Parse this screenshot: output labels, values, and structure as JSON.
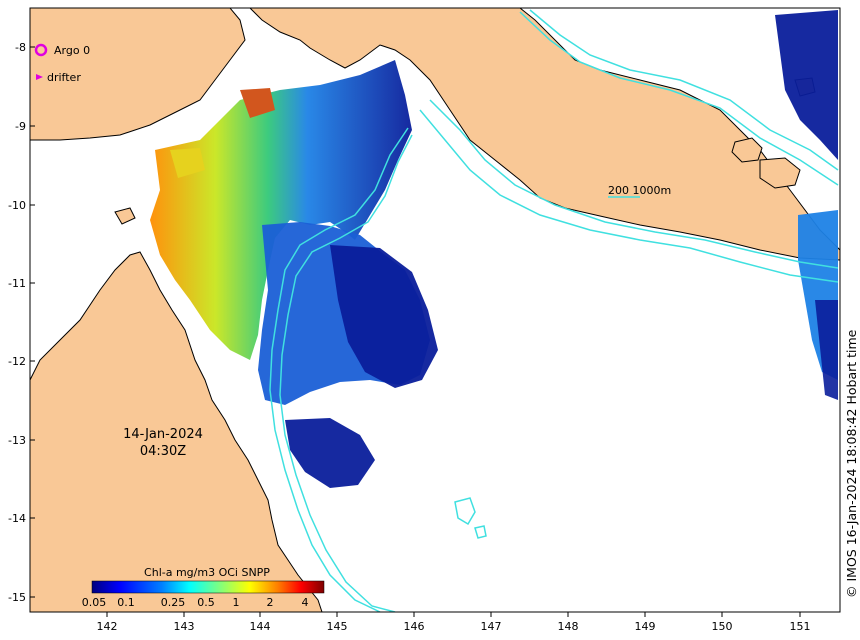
{
  "map": {
    "date_line": "14-Jan-2024",
    "time_line": "04:30Z",
    "credit": "© IMOS 16-Jan-2024 18:08:42 Hobart time",
    "isobath_label": "200  1000m",
    "legend": [
      {
        "label": "Argo 0",
        "icon": "argo-float-circle-icon",
        "color": "#e000e0"
      },
      {
        "label": "drifter",
        "icon": "drifter-arrow-icon",
        "color": "#e000e0"
      }
    ],
    "colorbar": {
      "title": "Chl-a mg/m3 OCi SNPP",
      "ticks": [
        "0.05",
        "0.1",
        "0.25",
        "0.5",
        "1",
        "2",
        "4"
      ],
      "colors": [
        "#00007f",
        "#0000ff",
        "#007fff",
        "#00ffff",
        "#7fff7f",
        "#ffff00",
        "#ff7f00",
        "#ff0000",
        "#7f0000"
      ]
    },
    "x_ticks": [
      "142",
      "143",
      "144",
      "145",
      "146",
      "147",
      "148",
      "149",
      "150",
      "151"
    ],
    "y_ticks": [
      "-8",
      "-9",
      "-10",
      "-11",
      "-12",
      "-13",
      "-14",
      "-15"
    ],
    "colors": {
      "land": "#f9c896",
      "coast": "#000000",
      "isobath": "#40e0e0",
      "sea": "#ffffff"
    }
  }
}
